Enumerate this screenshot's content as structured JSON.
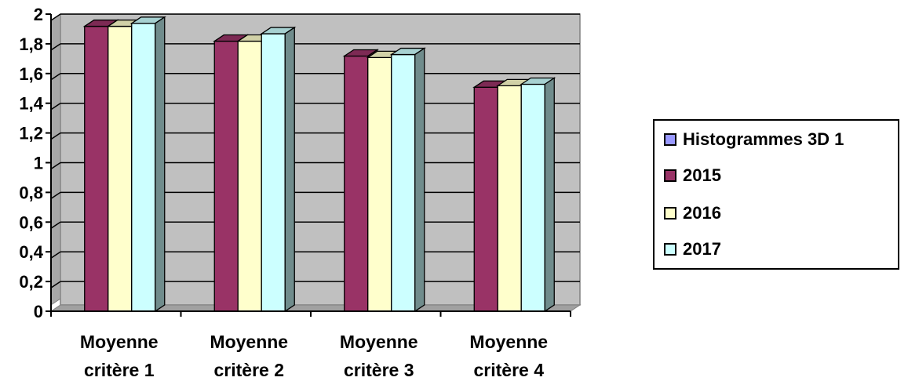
{
  "chart_data": {
    "type": "bar",
    "categories": [
      "Moyenne critère 1",
      "Moyenne critère 2",
      "Moyenne critère 3",
      "Moyenne critère 4"
    ],
    "category_lines": [
      [
        "Moyenne",
        "critère 1"
      ],
      [
        "Moyenne",
        "critère 2"
      ],
      [
        "Moyenne",
        "critère 3"
      ],
      [
        "Moyenne",
        "critère 4"
      ]
    ],
    "series": [
      {
        "name": "2015",
        "color": "#993366",
        "values": [
          1.96,
          1.86,
          1.76,
          1.55
        ]
      },
      {
        "name": "2016",
        "color": "#FFFFCC",
        "values": [
          1.96,
          1.86,
          1.75,
          1.56
        ]
      },
      {
        "name": "2017",
        "color": "#CCFFFF",
        "values": [
          1.98,
          1.91,
          1.77,
          1.57
        ]
      }
    ],
    "legend": [
      {
        "label": "Histogrammes 3D 1",
        "color": "#9999FF"
      },
      {
        "label": "2015",
        "color": "#993366"
      },
      {
        "label": "2016",
        "color": "#FFFFCC"
      },
      {
        "label": "2017",
        "color": "#CCFFFF"
      }
    ],
    "yticks": [
      "0",
      "0,2",
      "0,4",
      "0,6",
      "0,8",
      "1",
      "1,2",
      "1,4",
      "1,6",
      "1,8",
      "2"
    ],
    "ylim": [
      0,
      2
    ],
    "grid": true,
    "plot_background": "#C0C0C0",
    "legend_position": "right",
    "projection": "3d"
  }
}
